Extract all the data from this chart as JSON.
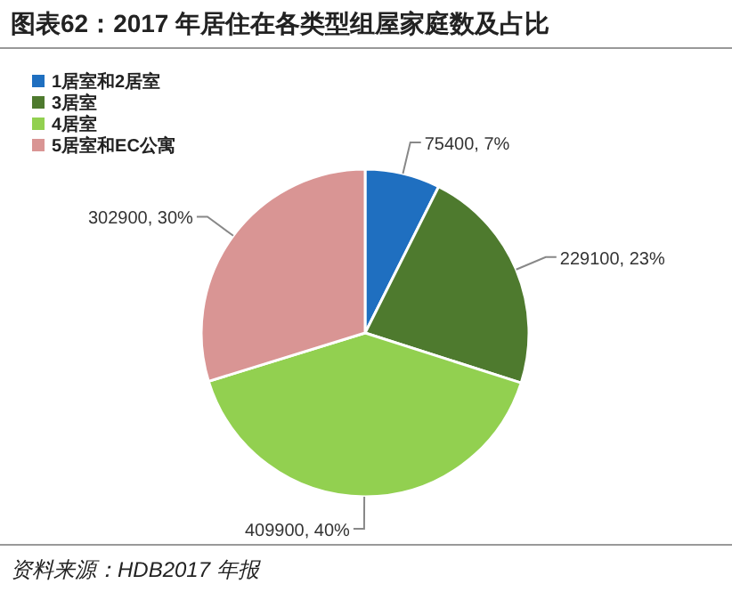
{
  "chart_data": {
    "type": "pie",
    "title": "图表62：2017 年居住在各类型组屋家庭数及占比",
    "categories": [
      "1居室和2居室",
      "3居室",
      "4居室",
      "5居室和EC公寓"
    ],
    "values": [
      75400,
      229100,
      409900,
      302900
    ],
    "colors": [
      "#1f6fc0",
      "#4e7a2e",
      "#92d050",
      "#d99594"
    ],
    "value_labels": [
      "75400, 7%",
      "229100, 23%",
      "409900, 40%",
      "302900, 30%"
    ],
    "legend": "top left",
    "annotations": [
      "资料来源：HDB2017 年报"
    ]
  }
}
